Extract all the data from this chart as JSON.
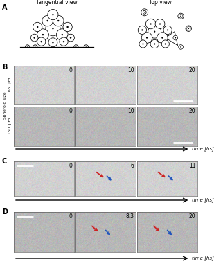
{
  "title_A": "A",
  "title_B": "B",
  "title_C": "C",
  "title_D": "D",
  "tangential_label": "Tangential view",
  "top_view_label": "Top view",
  "spheroid_size_label": "Spheroid size",
  "size_65": "65  μm",
  "size_150": "150  μm",
  "time_label": "time [hs]",
  "B_times_row1": [
    "0",
    "10",
    "20"
  ],
  "B_times_row2": [
    "0",
    "10",
    "20"
  ],
  "C_times": [
    "0",
    "6",
    "11"
  ],
  "D_times": [
    "0",
    "8.3",
    "20"
  ],
  "fig_bg": "#ffffff",
  "img_bg_light": 0.82,
  "img_bg_dark": 0.72,
  "img_noise": 0.04,
  "white": "#ffffff",
  "black": "#000000",
  "red": "#cc2222",
  "blue": "#2255bb",
  "label_fontsize": 7,
  "time_fontsize": 5.5,
  "axis_label_fontsize": 4.5,
  "arrow_lw": 1.0,
  "scale_bar_lw": 2.0
}
